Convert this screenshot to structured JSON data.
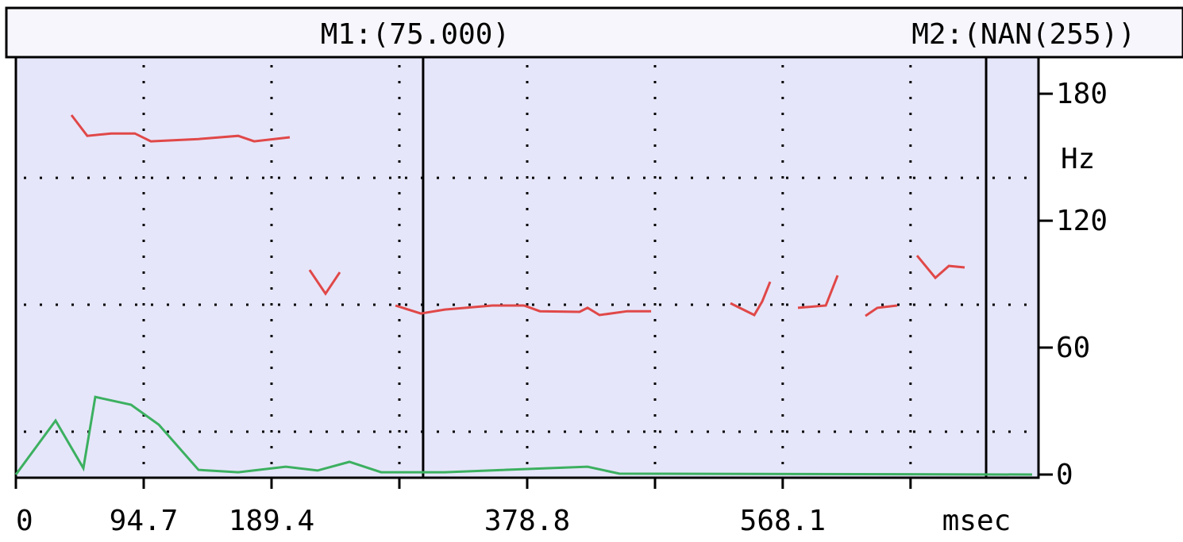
{
  "chart_data": {
    "type": "line",
    "y_axis_label": "Hz",
    "x_axis_label": "msec",
    "xlim": [
      0,
      757.6
    ],
    "ylim": [
      -1.5,
      197.3
    ],
    "xticks": [
      0,
      94.7,
      189.4,
      378.8,
      568.1
    ],
    "xminor_ticks": [
      284.1,
      473.5,
      662.8
    ],
    "yticks": [
      0,
      60,
      120,
      180
    ],
    "grid": true,
    "markers": [
      {
        "label": "M1:(75.000)",
        "x": 301.7
      },
      {
        "label": "M2:(NAN(255))",
        "x": 718.8
      }
    ],
    "series": [
      {
        "color": "#e04848",
        "x": [
          41.2,
          52.9,
          70.6,
          88.2,
          100,
          135.3,
          164.7,
          176.5,
          202.9,
          210,
          217.6,
          229.4,
          240,
          260,
          281.2,
          300,
          317.6,
          352.9,
          376.5,
          388.2,
          417.6,
          423.5,
          432.4,
          452.9,
          470.6,
          500,
          529.4,
          547,
          552.9,
          558.8,
          570,
          579.4,
          600,
          608.8,
          620,
          629.4,
          638.2,
          652.9,
          660,
          667.6,
          681.2,
          691.2,
          702.9
        ],
        "values": [
          169.9,
          160.1,
          161.2,
          161.2,
          157.5,
          158.6,
          160.1,
          157.5,
          159.4,
          null,
          96.7,
          85.5,
          95.6,
          null,
          79.9,
          76.1,
          78,
          79.9,
          79.9,
          77.2,
          76.9,
          78.8,
          75.4,
          77.2,
          77.2,
          null,
          81,
          75.4,
          81.8,
          91.1,
          null,
          78.8,
          79.9,
          94.1,
          null,
          75,
          78.8,
          79.9,
          null,
          103.5,
          93,
          98.6,
          97.9
        ]
      },
      {
        "color": "#3cb060",
        "x": [
          0,
          29.4,
          50,
          58.8,
          85.3,
          105.9,
          135.3,
          164.7,
          200,
          223.5,
          247.1,
          270.6,
          317.6,
          423.5,
          447.1,
          752.9
        ],
        "values": [
          0,
          25.5,
          3,
          36.7,
          33,
          23.6,
          2.2,
          1.1,
          3.7,
          1.9,
          6,
          1.1,
          1.1,
          3.7,
          0.4,
          0
        ]
      }
    ]
  }
}
